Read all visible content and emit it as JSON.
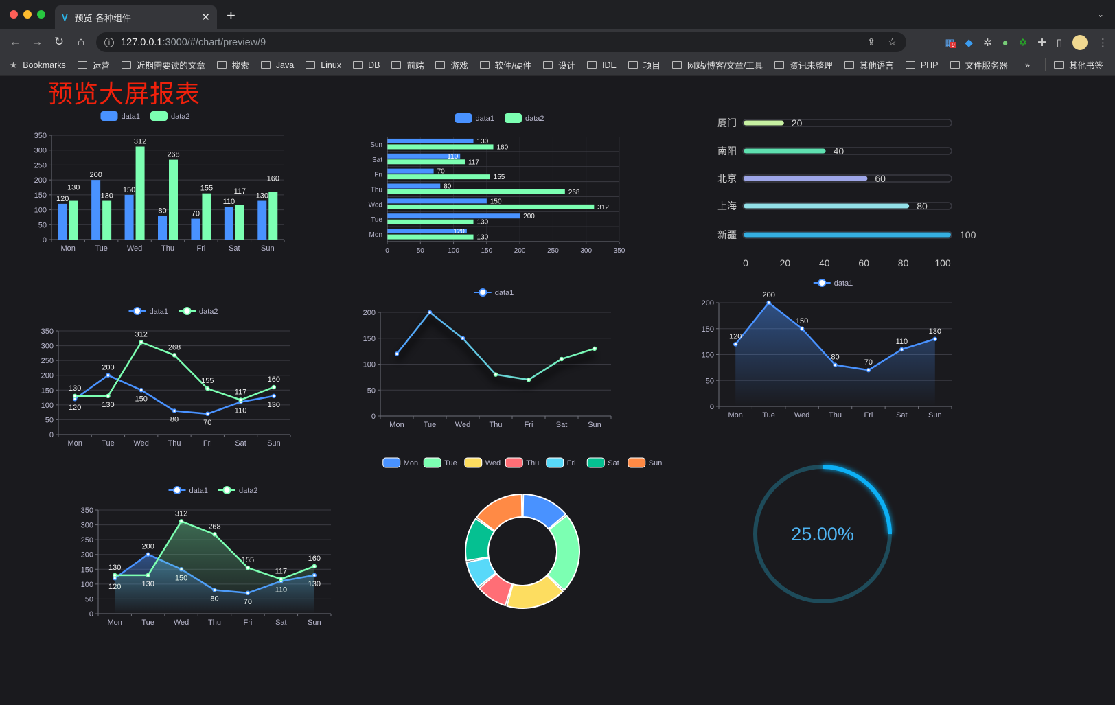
{
  "browser": {
    "tab_title": "预览-各种组件",
    "url_host": "127.0.0.1",
    "url_path": ":3000/#/chart/preview/9",
    "bookmarks": [
      "Bookmarks",
      "运营",
      "近期需要读的文章",
      "搜索",
      "Java",
      "Linux",
      "DB",
      "前端",
      "游戏",
      "软件/硬件",
      "设计",
      "IDE",
      "项目",
      "网站/博客/文章/工具",
      "资讯未整理",
      "其他语言",
      "PHP",
      "文件服务器"
    ],
    "overflow": "»",
    "other_bookmarks": "其他书签",
    "extension_badge": "9"
  },
  "page": {
    "title": "预览大屏报表",
    "title_color": "#f0210c"
  },
  "colors": {
    "data1": "#4992ff",
    "data2": "#7cffb2",
    "background": "#1a1a1e"
  },
  "chart_data": [
    {
      "type": "bar",
      "legend": [
        "data1",
        "data2"
      ],
      "categories": [
        "Mon",
        "Tue",
        "Wed",
        "Thu",
        "Fri",
        "Sat",
        "Sun"
      ],
      "yticks": [
        "0",
        "50",
        "100",
        "150",
        "200",
        "250",
        "300",
        "350"
      ],
      "ylim": [
        0,
        350
      ],
      "series": [
        {
          "name": "data1",
          "values": [
            120,
            200,
            150,
            80,
            70,
            110,
            130
          ]
        },
        {
          "name": "data2",
          "values": [
            130,
            130,
            312,
            268,
            155,
            117,
            160
          ]
        }
      ]
    },
    {
      "type": "bar",
      "orientation": "horizontal",
      "legend": [
        "data1",
        "data2"
      ],
      "categories": [
        "Mon",
        "Tue",
        "Wed",
        "Thu",
        "Fri",
        "Sat",
        "Sun"
      ],
      "xticks": [
        "0",
        "50",
        "100",
        "150",
        "200",
        "250",
        "300",
        "350"
      ],
      "xlim": [
        0,
        350
      ],
      "series": [
        {
          "name": "data1",
          "values": [
            120,
            200,
            150,
            80,
            70,
            110,
            130
          ]
        },
        {
          "name": "data2",
          "values": [
            130,
            130,
            312,
            268,
            155,
            117,
            160
          ]
        }
      ]
    },
    {
      "type": "bar",
      "orientation": "horizontal",
      "style": "progress",
      "categories": [
        "厦门",
        "南阳",
        "北京",
        "上海",
        "新疆"
      ],
      "values": [
        20,
        40,
        60,
        80,
        100
      ],
      "colors": [
        "#c7f0a2",
        "#5fe0b0",
        "#9ea6e8",
        "#93e0e8",
        "#35aee0"
      ],
      "xticks": [
        "0",
        "20",
        "40",
        "60",
        "80",
        "100"
      ],
      "xlim": [
        0,
        100
      ]
    },
    {
      "type": "line",
      "legend": [
        "data1",
        "data2"
      ],
      "categories": [
        "Mon",
        "Tue",
        "Wed",
        "Thu",
        "Fri",
        "Sat",
        "Sun"
      ],
      "yticks": [
        "0",
        "50",
        "100",
        "150",
        "200",
        "250",
        "300",
        "350"
      ],
      "ylim": [
        0,
        350
      ],
      "series": [
        {
          "name": "data1",
          "values": [
            120,
            200,
            150,
            80,
            70,
            110,
            130
          ]
        },
        {
          "name": "data2",
          "values": [
            130,
            130,
            312,
            268,
            155,
            117,
            160
          ]
        }
      ]
    },
    {
      "type": "line",
      "legend": [
        "data1"
      ],
      "categories": [
        "Mon",
        "Tue",
        "Wed",
        "Thu",
        "Fri",
        "Sat",
        "Sun"
      ],
      "yticks": [
        "0",
        "50",
        "100",
        "150",
        "200"
      ],
      "ylim": [
        0,
        200
      ],
      "series": [
        {
          "name": "data1",
          "values": [
            120,
            200,
            150,
            80,
            70,
            110,
            130
          ]
        }
      ]
    },
    {
      "type": "area",
      "legend": [
        "data1"
      ],
      "categories": [
        "Mon",
        "Tue",
        "Wed",
        "Thu",
        "Fri",
        "Sat",
        "Sun"
      ],
      "yticks": [
        "0",
        "50",
        "100",
        "150",
        "200"
      ],
      "ylim": [
        0,
        200
      ],
      "series": [
        {
          "name": "data1",
          "values": [
            120,
            200,
            150,
            80,
            70,
            110,
            130
          ]
        }
      ]
    },
    {
      "type": "area",
      "legend": [
        "data1",
        "data2"
      ],
      "categories": [
        "Mon",
        "Tue",
        "Wed",
        "Thu",
        "Fri",
        "Sat",
        "Sun"
      ],
      "yticks": [
        "0",
        "50",
        "100",
        "150",
        "200",
        "250",
        "300",
        "350"
      ],
      "ylim": [
        0,
        350
      ],
      "series": [
        {
          "name": "data1",
          "values": [
            120,
            200,
            150,
            80,
            70,
            110,
            130
          ]
        },
        {
          "name": "data2",
          "values": [
            130,
            130,
            312,
            268,
            155,
            117,
            160
          ]
        }
      ]
    },
    {
      "type": "pie",
      "style": "donut",
      "categories": [
        "Mon",
        "Tue",
        "Wed",
        "Thu",
        "Fri",
        "Sat",
        "Sun"
      ],
      "values": [
        120,
        200,
        150,
        80,
        70,
        110,
        130
      ],
      "colors": [
        "#4992ff",
        "#7cffb2",
        "#fddd60",
        "#ff6e76",
        "#58d9f9",
        "#05c091",
        "#ff8a45"
      ]
    },
    {
      "type": "pie",
      "style": "gauge-ring",
      "value": 0.25,
      "label": "25.00%",
      "color": "#0fb0f5"
    }
  ]
}
